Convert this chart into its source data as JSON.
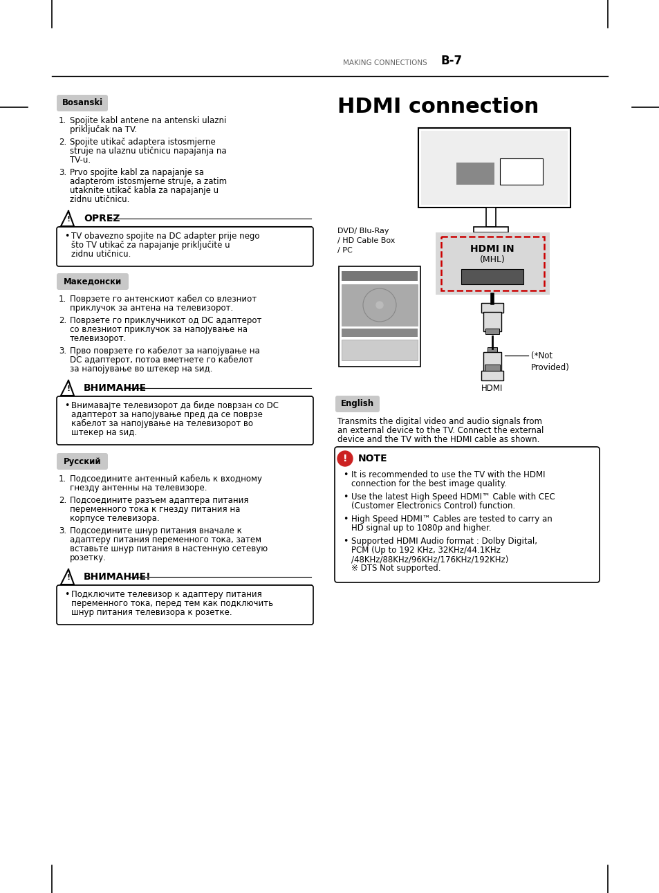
{
  "page_header_left": "MAKING CONNECTIONS",
  "page_header_right": "B-7",
  "title": "HDMI connection",
  "bg_color": "#ffffff",
  "header_line_color": "#000000",
  "bosanski_label": "Bosanski",
  "bosanski_items": [
    "Spojite kabl antene na antenski ulazni priključak na TV.",
    "Spojite utikač adaptera istosmjerne struje na ulaznu utičnicu napajanja na TV-u.",
    "Prvo spojite kabl za napajanje sa adapterom istosmjerne struje, a zatim utaknite utikač kabla za napajanje u zidnu utičnicu."
  ],
  "oprez_title": "OPREZ",
  "oprez_items": [
    "TV obavezno spojite na DC adapter prije nego što TV utikač za napajanje priključite u zidnu utičnicu."
  ],
  "macedonian_label": "Македонски",
  "macedonian_items": [
    "Поврзете го антенскиот кабел со влезниот приклучок за антена на телевизорот.",
    "Поврзете го приклучникот од DC адаптерот со влезниот приклучок за напојување на телевизорот.",
    "Прво поврзете го кабелот за напојување на DC адаптерот, потоа вметнете го кабелот за напојување во штекер на sид."
  ],
  "vnimanie_title": "ВНИМАНИЕ",
  "vnimanie_items": [
    "Внимавајте телевизорот да биде поврзан со DC адаптерот за напојување пред да се поврзе кабелот за напојување на телевизорот во штекер на sид."
  ],
  "russian_label": "Русский",
  "russian_items": [
    "Подсоедините антенный кабель к входному гнезду антенны на телевизоре.",
    "Подсоедините разъем адаптера питания переменного тока к гнезду питания на корпусе телевизора.",
    "Подсоедините шнур питания вначале к адаптеру питания переменного тока, затем вставьте шнур питания в настенную сетевую розетку."
  ],
  "vnimanie2_title": "ВНИМАНИЕ!",
  "vnimanie2_items": [
    "Подключите телевизор к адаптеру питания переменного тока, перед тем как подключить шнур питания телевизора к розетке."
  ],
  "english_label": "English",
  "english_text": "Transmits the digital video and audio signals from an external device to the TV. Connect the external device and the TV with the HDMI cable as shown.",
  "note_title": "NOTE",
  "note_items": [
    "It is recommended to use the TV with the HDMI connection for the best image quality.",
    "Use the latest High Speed HDMI™ Cable with CEC (Customer Electronics Control) function.",
    "High Speed HDMI™ Cables are tested to carry an HD signal up to 1080p and higher.",
    "Supported HDMI Audio format : Dolby Digital, PCM (Up to 192 KHz, 32KHz/44.1KHz /48KHz/88KHz/96KHz/176KHz/192KHz)\n※ DTS Not supported."
  ],
  "diagram_labels": {
    "hdmi_in": "HDMI IN",
    "mhl": "(MHL)",
    "dvd_label": "DVD/ Blu-Ray\n/ HD Cable Box\n/ PC",
    "not_provided": "(*Not\nProvided)",
    "hdmi_bottom": "HDMI"
  }
}
